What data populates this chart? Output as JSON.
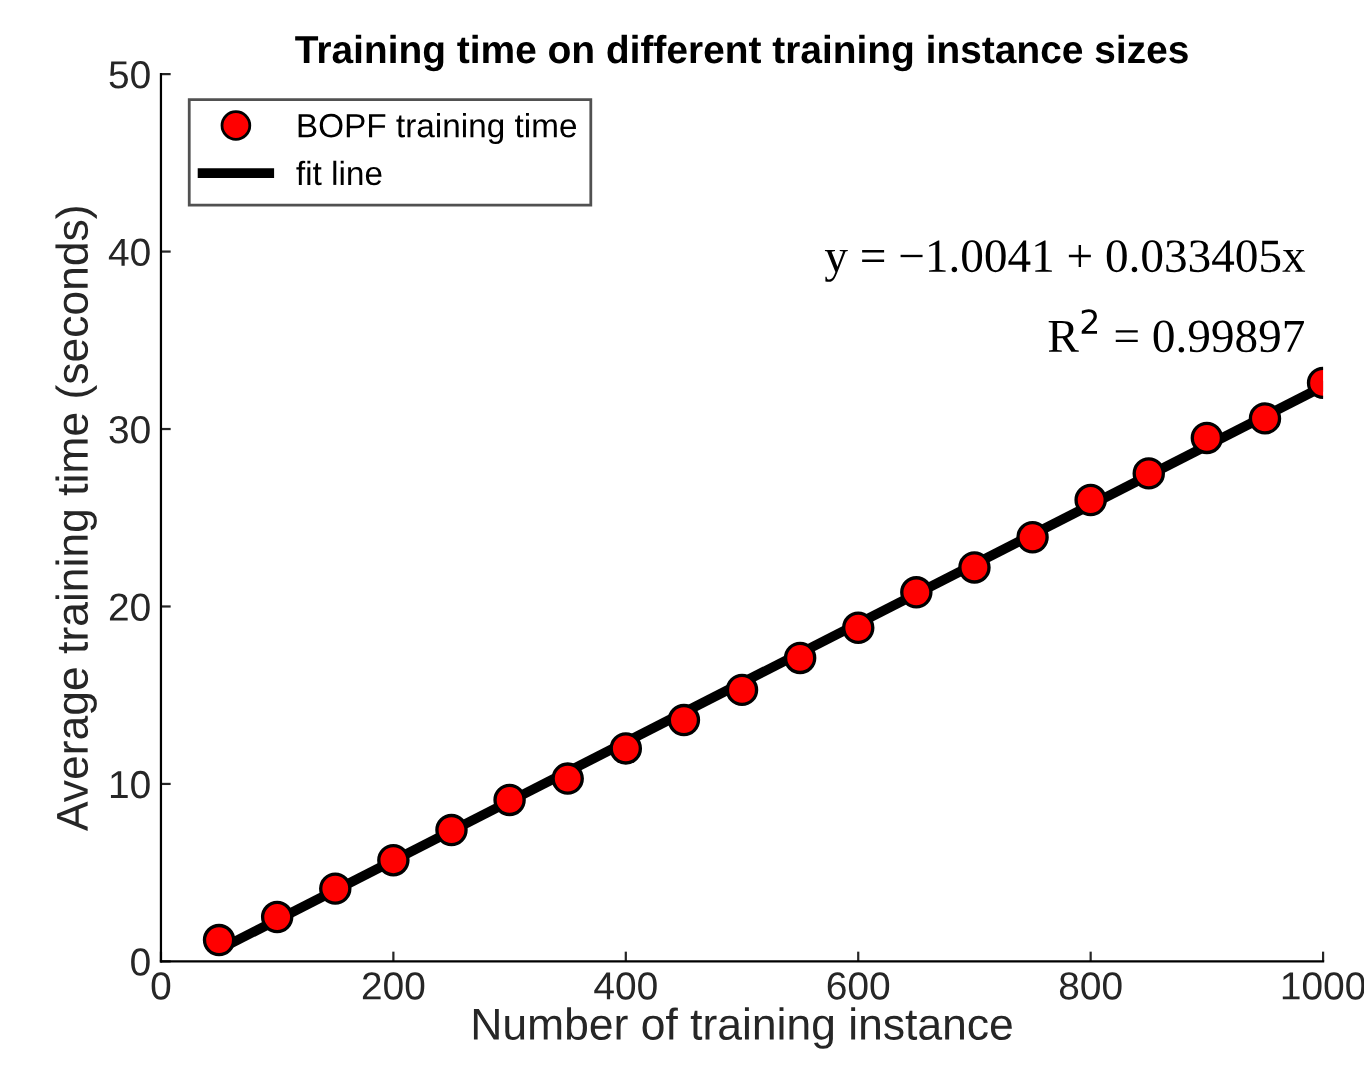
{
  "chart_data": {
    "type": "scatter",
    "title": "Training time on different training instance sizes",
    "xlabel": "Number of training instance",
    "ylabel": "Average training time (seconds)",
    "x": [
      50,
      100,
      150,
      200,
      250,
      300,
      350,
      400,
      450,
      500,
      550,
      600,
      650,
      700,
      750,
      800,
      850,
      900,
      950,
      1000
    ],
    "series": [
      {
        "name": "BOPF training time",
        "color": "#ff0000",
        "marker": "circle",
        "values": [
          1.2,
          2.5,
          4.1,
          5.7,
          7.4,
          9.1,
          10.3,
          12.0,
          13.6,
          15.3,
          17.1,
          18.8,
          20.8,
          22.2,
          23.9,
          26.0,
          27.5,
          29.5,
          30.6,
          32.6
        ]
      },
      {
        "name": "fit line",
        "type": "line",
        "color": "#000000",
        "marker": "none",
        "line_style": "solid",
        "x": [
          50,
          1000
        ],
        "values": [
          0.67,
          32.4
        ]
      }
    ],
    "annotations": [
      "y = −1.0041 + 0.033405x",
      "R$^{2}$ = 0.99897"
    ],
    "xlim": [
      0,
      1000
    ],
    "xticks": [
      0,
      200,
      400,
      600,
      800,
      1000
    ],
    "ylim": [
      0,
      50
    ],
    "yticks": [
      0,
      10,
      20,
      30,
      40,
      50
    ],
    "grid": false,
    "legend": "top left"
  }
}
